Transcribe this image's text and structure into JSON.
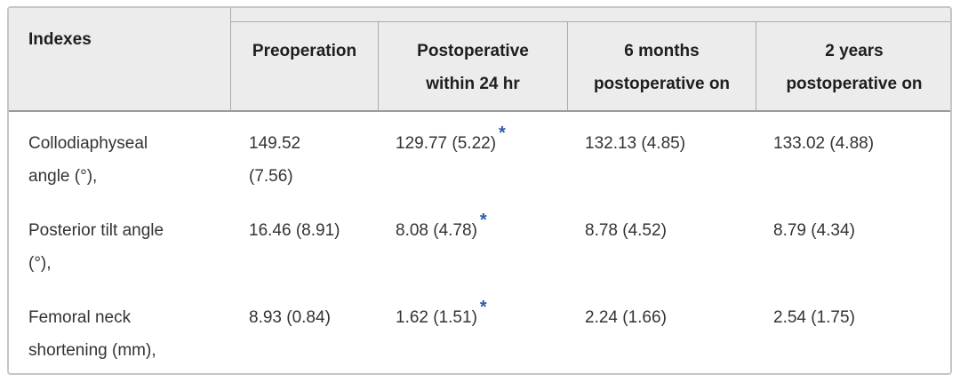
{
  "colors": {
    "header_background": "#ececec",
    "outer_border": "#c6c6c6",
    "inner_border": "#ababab",
    "header_bottom_border": "#9b9b9b",
    "header_text": "#1e1e1e",
    "body_text": "#333333",
    "footnote_star": "#2a5ba9"
  },
  "table": {
    "corner_label": "Indexes",
    "column_headers": [
      {
        "name": "preoperation",
        "lines": [
          "Preoperation",
          ""
        ]
      },
      {
        "name": "postoperative-within-24-hr",
        "lines": [
          "Postoperative",
          "within 24 hr"
        ]
      },
      {
        "name": "6-months-postoperative",
        "lines": [
          "6 months",
          "postoperative on"
        ]
      },
      {
        "name": "2-years-postoperative",
        "lines": [
          "2 years",
          "postoperative on"
        ]
      }
    ],
    "rows": [
      {
        "label_lines": [
          "Collodiaphyseal",
          "angle (°),"
        ],
        "cells": [
          {
            "lines": [
              "149.52",
              "(7.56)"
            ],
            "mark": ""
          },
          {
            "lines": [
              "129.77 (5.22)"
            ],
            "mark": "*"
          },
          {
            "lines": [
              "132.13 (4.85)"
            ],
            "mark": ""
          },
          {
            "lines": [
              "133.02 (4.88)"
            ],
            "mark": ""
          }
        ]
      },
      {
        "label_lines": [
          "Posterior tilt angle",
          "(°),"
        ],
        "cells": [
          {
            "lines": [
              "16.46 (8.91)"
            ],
            "mark": ""
          },
          {
            "lines": [
              "8.08 (4.78)"
            ],
            "mark": "*"
          },
          {
            "lines": [
              "8.78 (4.52)"
            ],
            "mark": ""
          },
          {
            "lines": [
              "8.79 (4.34)"
            ],
            "mark": ""
          }
        ]
      },
      {
        "label_lines": [
          "Femoral neck",
          "shortening (mm),"
        ],
        "cells": [
          {
            "lines": [
              "8.93 (0.84)"
            ],
            "mark": ""
          },
          {
            "lines": [
              "1.62 (1.51)"
            ],
            "mark": "*"
          },
          {
            "lines": [
              "2.24 (1.66)"
            ],
            "mark": ""
          },
          {
            "lines": [
              "2.54 (1.75)"
            ],
            "mark": ""
          }
        ]
      }
    ]
  }
}
